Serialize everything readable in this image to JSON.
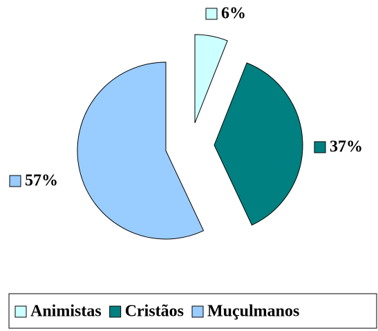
{
  "chart_data": {
    "type": "pie",
    "categories": [
      "Animistas",
      "Cristãos",
      "Muçulmanos"
    ],
    "values": [
      6,
      37,
      57
    ],
    "value_labels": [
      "6%",
      "37%",
      "57%"
    ],
    "colors": [
      "#ccffff",
      "#008080",
      "#99ccff"
    ],
    "legend": "bottom"
  }
}
